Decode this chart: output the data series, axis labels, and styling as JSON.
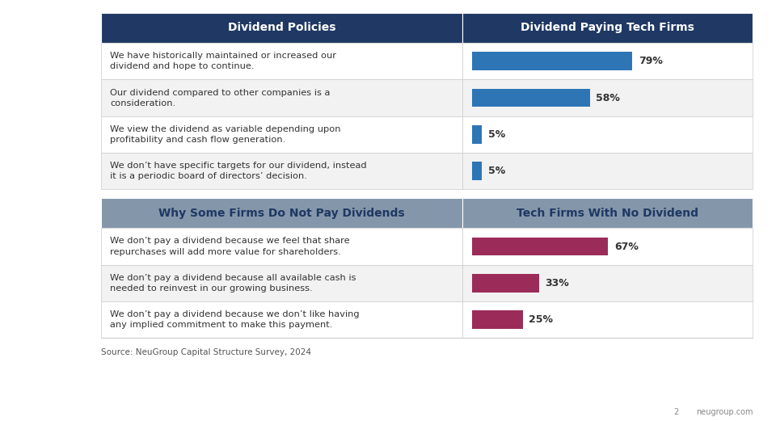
{
  "section1_header_left": "Dividend Policies",
  "section1_header_right": "Dividend Paying Tech Firms",
  "section1_rows": [
    {
      "text": "We have historically maintained or increased our\ndividend and hope to continue.",
      "value": 79,
      "label": "79%"
    },
    {
      "text": "Our dividend compared to other companies is a\nconsideration.",
      "value": 58,
      "label": "58%"
    },
    {
      "text": "We view the dividend as variable depending upon\nprofitability and cash flow generation.",
      "value": 5,
      "label": "5%"
    },
    {
      "text": "We don’t have specific targets for our dividend, instead\nit is a periodic board of directors’ decision.",
      "value": 5,
      "label": "5%"
    }
  ],
  "section2_header_left": "Why Some Firms Do Not Pay Dividends",
  "section2_header_right": "Tech Firms With No Dividend",
  "section2_rows": [
    {
      "text": "We don’t pay a dividend because we feel that share\nrepurchases will add more value for shareholders.",
      "value": 67,
      "label": "67%"
    },
    {
      "text": "We don’t pay a dividend because all available cash is\nneeded to reinvest in our growing business.",
      "value": 33,
      "label": "33%"
    },
    {
      "text": "We don’t pay a dividend because we don’t like having\nany implied commitment to make this payment.",
      "value": 25,
      "label": "25%"
    }
  ],
  "section1_bar_color": "#2E75B6",
  "section2_bar_color": "#9B2C5A",
  "header_bg_color": "#1F3864",
  "header_text_color": "#FFFFFF",
  "section2_header_bg_color": "#8496A9",
  "section2_header_text_color": "#1F3864",
  "row_bg_even": "#FFFFFF",
  "row_bg_odd": "#F2F2F2",
  "border_color": "#CCCCCC",
  "text_color": "#333333",
  "source_text": "Source: NeuGroup Capital Structure Survey, 2024",
  "footer_right": "neugroup.com",
  "footer_num": "2",
  "background_color": "#FFFFFF"
}
